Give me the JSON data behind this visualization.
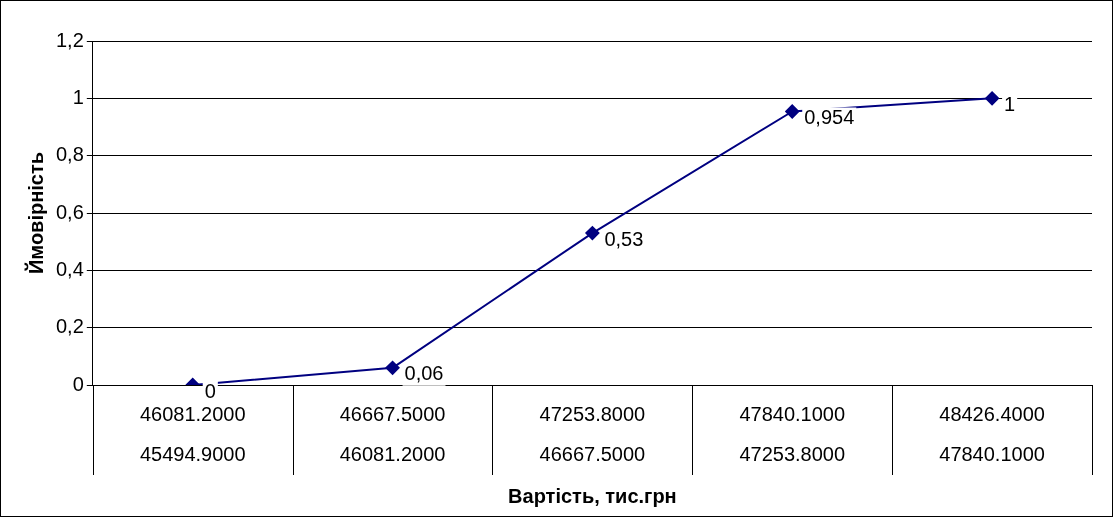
{
  "chart_data": {
    "type": "line",
    "xlabel": "Вартість, тис.грн",
    "ylabel": "Ймовірність",
    "categories": [
      "46081.2000\n45494.9000",
      "46667.5000\n46081.2000",
      "47253.8000\n46667.5000",
      "47840.1000\n47253.8000",
      "48426.4000\n47840.1000"
    ],
    "series": [
      {
        "color": "#000080",
        "values": [
          0,
          0.06,
          0.53,
          0.954,
          1
        ],
        "value_labels": [
          "0",
          "0,06",
          "0,53",
          "0,954",
          "1"
        ]
      }
    ],
    "ylim": [
      0,
      1.2
    ],
    "yticks": [
      0,
      {
        "value": 0.2,
        "label": "0,2"
      },
      {
        "value": 0.4,
        "label": "0,4"
      },
      {
        "value": 0.6,
        "label": "0,6"
      },
      {
        "value": 0.8,
        "label": "0,8"
      },
      1,
      {
        "value": 1.2,
        "label": "1,2"
      }
    ],
    "grid": "y",
    "legend": false,
    "marker": "diamond",
    "line_style": "solid"
  }
}
